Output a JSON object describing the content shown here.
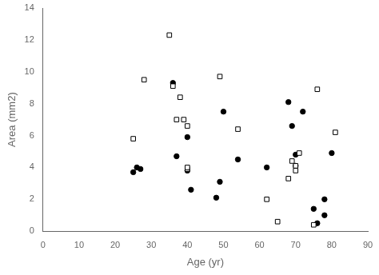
{
  "chart_data": {
    "type": "scatter",
    "x_label": "Age (yr)",
    "y_label": "Area (mm2)",
    "series": [
      {
        "color": "black",
        "marker": "open_square",
        "x": [
          25,
          28,
          35,
          36,
          37,
          38,
          39,
          40,
          40,
          40,
          49,
          54,
          62,
          65,
          68,
          69,
          70,
          70,
          71,
          75,
          76,
          81
        ],
        "values": [
          5.8,
          9.5,
          12.3,
          9.1,
          7.0,
          8.4,
          7.0,
          3.9,
          4.0,
          6.6,
          9.7,
          6.4,
          2.0,
          0.6,
          3.3,
          4.4,
          3.8,
          4.1,
          4.9,
          0.4,
          8.9,
          6.2
        ]
      },
      {
        "color": "black",
        "marker": "circle",
        "x": [
          25,
          26,
          27,
          36,
          37,
          40,
          40,
          41,
          48,
          49,
          50,
          54,
          62,
          68,
          69,
          70,
          70,
          72,
          75,
          76,
          78,
          78,
          80
        ],
        "values": [
          3.7,
          4.0,
          3.9,
          9.3,
          4.7,
          5.9,
          3.8,
          2.6,
          2.1,
          3.1,
          7.5,
          4.5,
          4.0,
          8.1,
          6.6,
          4.1,
          4.8,
          7.5,
          1.4,
          0.5,
          2.0,
          1.0,
          4.9
        ]
      }
    ],
    "xlim": [
      0,
      90
    ],
    "ylim": [
      0,
      14
    ],
    "xticks": [
      0,
      10,
      20,
      30,
      40,
      50,
      60,
      70,
      80,
      90
    ],
    "yticks": [
      0,
      2,
      4,
      6,
      8,
      10,
      12,
      14
    ],
    "grid": false
  }
}
